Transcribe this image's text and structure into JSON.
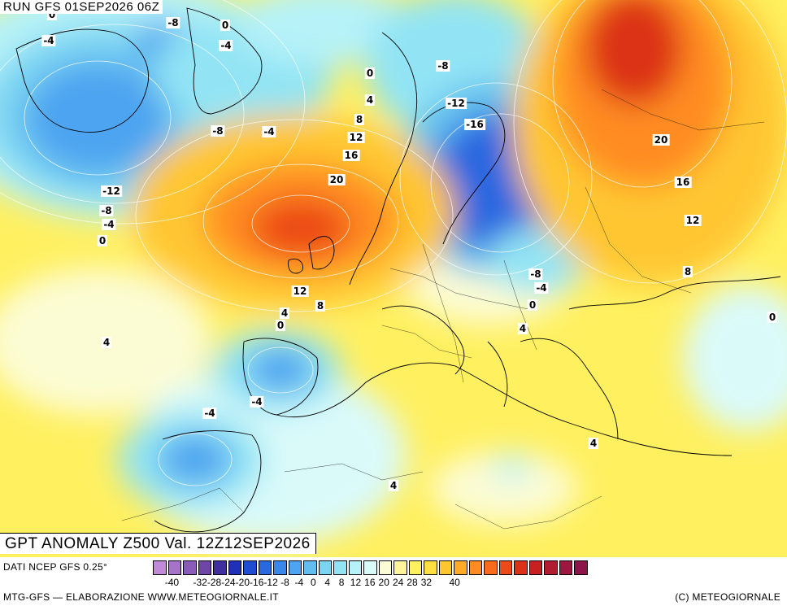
{
  "header": {
    "run_label": "RUN GFS 01SEP2026 06Z"
  },
  "title": {
    "text": "GPT ANOMALY Z500 Val. 12Z12SEP2026"
  },
  "footer": {
    "data_source": "DATI NCEP GFS 0.25°",
    "credit_left": "MTG-GFS — ELABORAZIONE WWW.METEOGIORNALE.IT",
    "credit_right": "(C) METEOGIORNALE"
  },
  "contour_labels": [
    "0",
    "-4",
    "-8",
    "0",
    "-4",
    "-8",
    "-4",
    "-8",
    "0",
    "4",
    "8",
    "12",
    "16",
    "20",
    "-12",
    "-8",
    "-4",
    "0",
    "-8",
    "-12",
    "-16",
    "20",
    "16",
    "12",
    "8",
    "-8",
    "-4",
    "0",
    "12",
    "8",
    "4",
    "0",
    "4",
    "0",
    "4",
    "-4",
    "-4",
    "4",
    "4",
    "0"
  ],
  "legend": {
    "colors": [
      "#c08ad8",
      "#a573c8",
      "#8a5cb8",
      "#6f45a8",
      "#3f2fa0",
      "#2030b8",
      "#1f4cd0",
      "#2a68e0",
      "#3a86ea",
      "#4ea4f0",
      "#62beee",
      "#7ad4f2",
      "#92e4f4",
      "#b6f2f8",
      "#dafafa",
      "#fcfcd4",
      "#fff49a",
      "#fff060",
      "#ffe040",
      "#ffc630",
      "#ffaa28",
      "#ff8c20",
      "#f86a1c",
      "#ec4a18",
      "#dc3018",
      "#c82020",
      "#b01c30",
      "#9c1840",
      "#8c1448"
    ],
    "ticks": [
      "-40",
      "-32",
      "-28",
      "-24",
      "-20",
      "-16",
      "-12",
      "-8",
      "-4",
      "0",
      "4",
      "8",
      "12",
      "16",
      "20",
      "24",
      "28",
      "32",
      "40"
    ]
  }
}
